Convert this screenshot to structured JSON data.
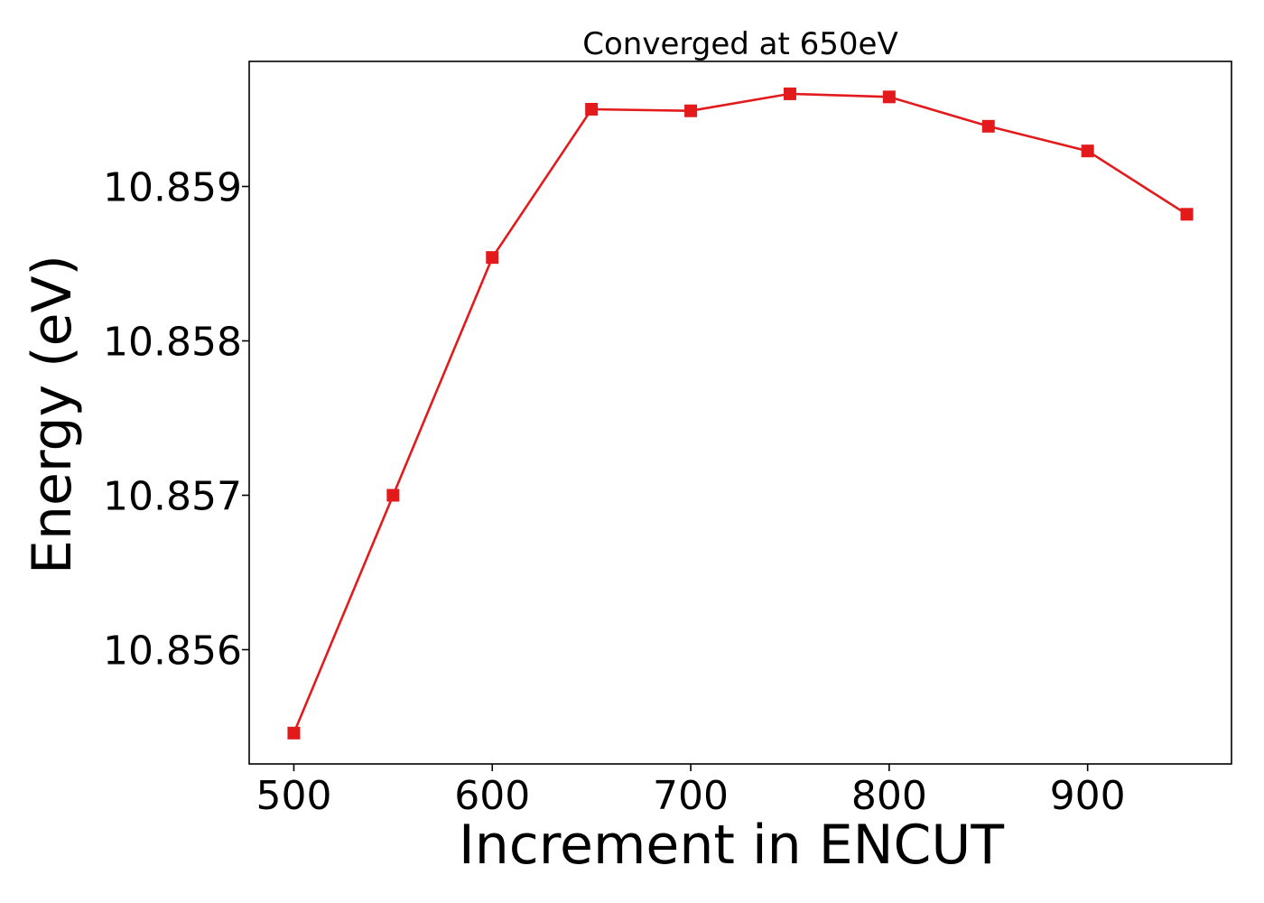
{
  "chart_data": {
    "type": "line",
    "title": "Converged at 650eV",
    "xlabel": "Increment in ENCUT",
    "ylabel": "Energy (eV)",
    "x": [
      500,
      550,
      600,
      650,
      700,
      750,
      800,
      850,
      900,
      950
    ],
    "series": [
      {
        "values": [
          10.85546,
          10.857,
          10.85854,
          10.8595,
          10.85949,
          10.8596,
          10.85958,
          10.85939,
          10.85923,
          10.85882
        ],
        "color": "#e31a1c",
        "marker": "square"
      }
    ],
    "xlim": [
      477.5,
      972.5
    ],
    "ylim": [
      10.85526,
      10.85981
    ],
    "xticks": [
      500,
      600,
      700,
      800,
      900
    ],
    "xtick_labels": [
      "500",
      "600",
      "700",
      "800",
      "900"
    ],
    "yticks": [
      10.856,
      10.857,
      10.858,
      10.859
    ],
    "ytick_labels": [
      "10.856",
      "10.857",
      "10.858",
      "10.859"
    ],
    "grid": false,
    "legend": false
  }
}
